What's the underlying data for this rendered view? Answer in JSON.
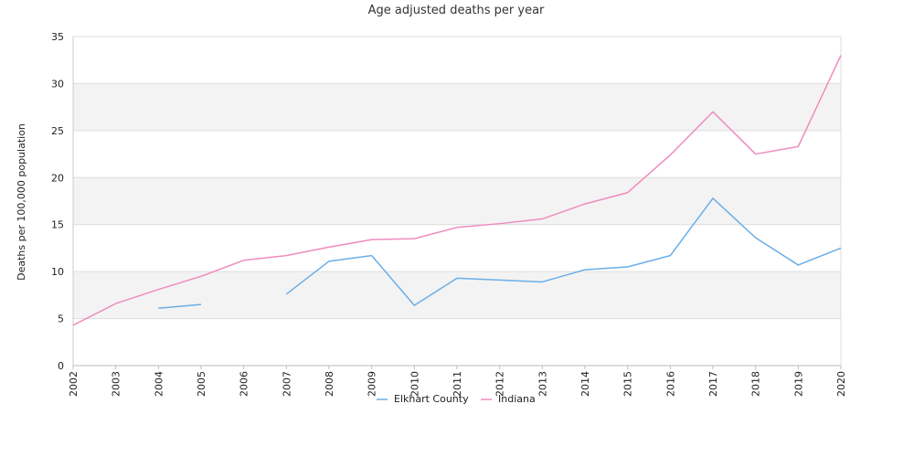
{
  "chart_data": {
    "type": "line",
    "title": "Age adjusted deaths per year",
    "xlabel": "",
    "ylabel": "Deaths per 100,000 population",
    "ylim": [
      0,
      35
    ],
    "yticks": [
      0,
      5,
      10,
      15,
      20,
      25,
      30,
      35
    ],
    "grid": "alternating horizontal bands",
    "legend_position": "bottom-center",
    "categories": [
      "2002",
      "2003",
      "2004",
      "2005",
      "2006",
      "2007",
      "2008",
      "2009",
      "2010",
      "2011",
      "2012",
      "2013",
      "2014",
      "2015",
      "2016",
      "2017",
      "2018",
      "2019",
      "2020"
    ],
    "series": [
      {
        "name": "Elkhart County",
        "color": "#6aaee8",
        "values": [
          null,
          null,
          6.1,
          6.5,
          null,
          7.6,
          11.1,
          11.7,
          6.4,
          9.3,
          9.1,
          8.9,
          10.2,
          10.5,
          11.7,
          17.8,
          13.6,
          10.7,
          12.5
        ]
      },
      {
        "name": "Indiana",
        "color": "#f08bbd",
        "values": [
          4.3,
          6.6,
          8.1,
          9.5,
          11.2,
          11.7,
          12.6,
          13.4,
          13.5,
          14.7,
          15.1,
          15.6,
          17.2,
          18.4,
          22.4,
          27.0,
          22.5,
          23.3,
          33.0
        ]
      }
    ]
  }
}
